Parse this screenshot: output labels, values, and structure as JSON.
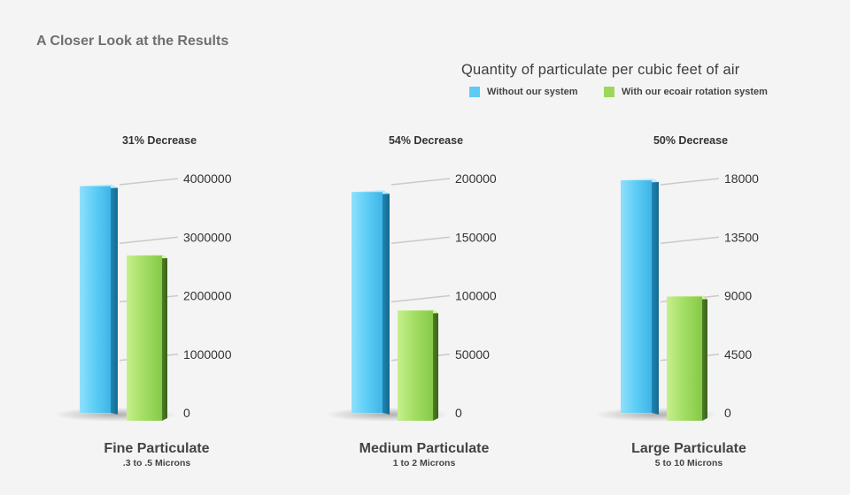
{
  "page_title": "A Closer Look at the Results",
  "legend": {
    "without_label": "Without our system",
    "with_label": "With our ecoair rotation system",
    "without_color": "#5ecbf5",
    "with_color": "#9bd85a"
  },
  "chart_data": [
    {
      "type": "bar",
      "title": "Quantity of particulate per cubic feet of air",
      "annotation": "31% Decrease",
      "xlabel": "Fine Particulate",
      "subtitle": ".3 to .5 Microns",
      "ylim": [
        0,
        4000000
      ],
      "yticks": [
        "0",
        "1000000",
        "2000000",
        "3000000",
        "4000000"
      ],
      "series": [
        {
          "name": "Without our system",
          "values": [
            3900000
          ]
        },
        {
          "name": "With our ecoair rotation system",
          "values": [
            2700000
          ]
        }
      ]
    },
    {
      "type": "bar",
      "title": "Quantity of particulate per cubic feet of air",
      "annotation": "54% Decrease",
      "xlabel": "Medium Particulate",
      "subtitle": "1 to 2 Microns",
      "ylim": [
        0,
        200000
      ],
      "yticks": [
        "0",
        "50000",
        "100000",
        "150000",
        "200000"
      ],
      "series": [
        {
          "name": "Without our system",
          "values": [
            190000
          ]
        },
        {
          "name": "With our ecoair rotation system",
          "values": [
            88000
          ]
        }
      ]
    },
    {
      "type": "bar",
      "title": "Quantity of particulate per cubic feet of air",
      "annotation": "50% Decrease",
      "xlabel": "Large Particulate",
      "subtitle": "5 to 10 Microns",
      "ylim": [
        0,
        18000
      ],
      "yticks": [
        "0",
        "4500",
        "9000",
        "13500",
        "18000"
      ],
      "series": [
        {
          "name": "Without our system",
          "values": [
            18000
          ]
        },
        {
          "name": "With our ecoair rotation system",
          "values": [
            9000
          ]
        }
      ]
    }
  ]
}
